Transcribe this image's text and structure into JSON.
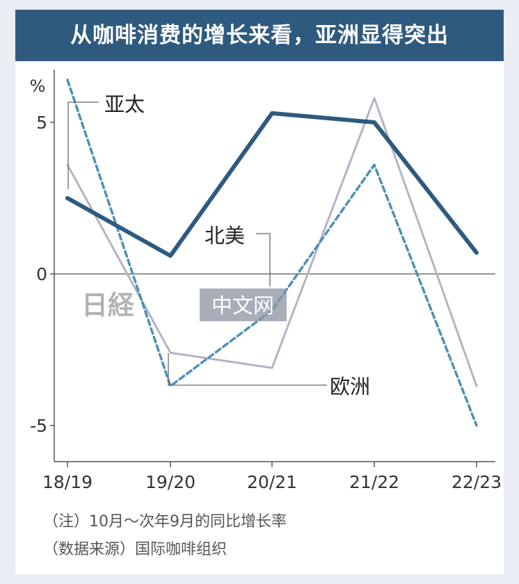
{
  "title": "从咖啡消费的增长来看，亚洲显得突出",
  "watermark": {
    "left": "日経",
    "right": "中文网"
  },
  "notes": [
    "（注）10月～次年9月的同比增长率",
    "（数据来源）国际咖啡组织"
  ],
  "chart_data": {
    "type": "line",
    "title": "从咖啡消费的增长来看，亚洲显得突出",
    "ylabel": "%",
    "xlabel": "",
    "ylim": [
      -6,
      6.5
    ],
    "yticks": [
      5,
      0,
      -5
    ],
    "ytick_labels": [
      "5",
      "0",
      "-5"
    ],
    "categories": [
      "18/19",
      "19/20",
      "20/21",
      "21/22",
      "22/23"
    ],
    "grid": false,
    "series": [
      {
        "name": "亚太",
        "values": [
          2.5,
          0.6,
          5.3,
          5.0,
          0.7
        ],
        "color": "#2f5a80",
        "style": "solid-thick"
      },
      {
        "name": "北美",
        "values": [
          6.4,
          -3.7,
          -1.2,
          3.6,
          -5.0
        ],
        "color": "#4f8fb5",
        "style": "dashed"
      },
      {
        "name": "欧洲",
        "values": [
          3.6,
          -2.6,
          -3.1,
          5.8,
          -3.7
        ],
        "color": "#b3b3c4",
        "style": "solid-thin"
      }
    ]
  }
}
